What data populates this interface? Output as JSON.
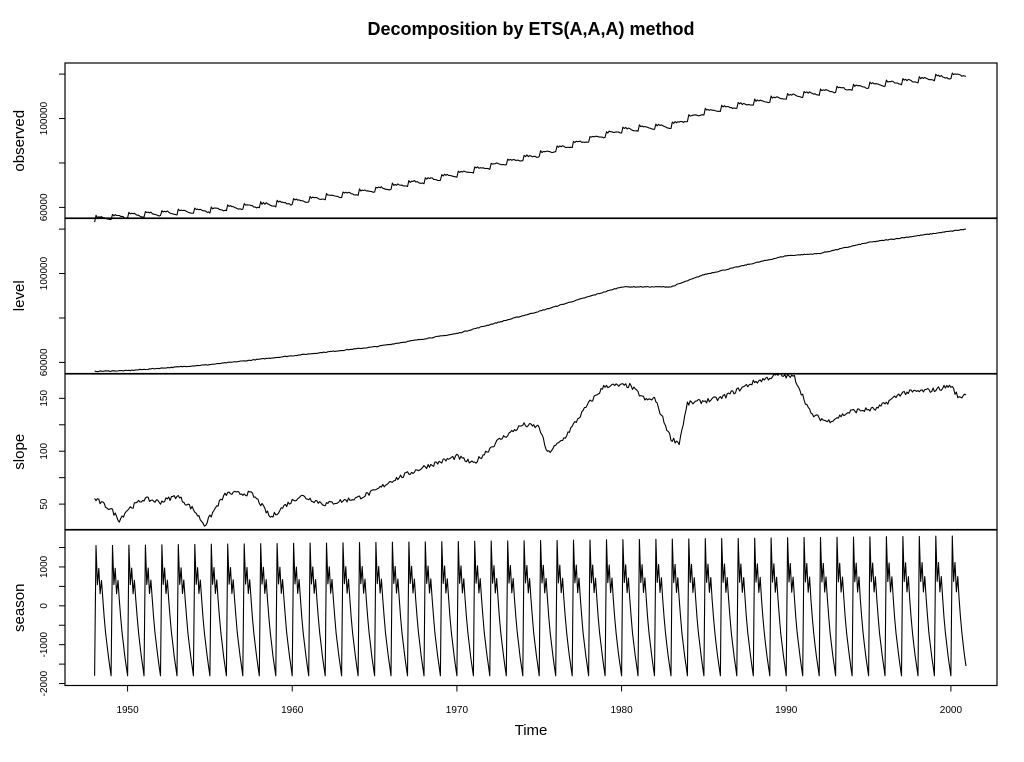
{
  "chart_data": {
    "type": "line",
    "title": "Decomposition by ETS(A,A,A) method",
    "xlabel": "Time",
    "xlim": [
      1946.2,
      2002.8
    ],
    "x_ticks": [
      1950,
      1960,
      1970,
      1980,
      1990,
      2000
    ],
    "x_start": 1948.0,
    "x_end": 2000.917,
    "x_frequency": 12,
    "panels": [
      {
        "name": "observed",
        "ylabel": "observed",
        "ylim": [
          55000,
          125000
        ],
        "y_ticks": [
          60000,
          100000
        ],
        "knots": [
          [
            1948.0,
            55000
          ],
          [
            1950.0,
            56500
          ],
          [
            1955.0,
            59000
          ],
          [
            1960.0,
            62500
          ],
          [
            1965.0,
            68000
          ],
          [
            1970.0,
            75000
          ],
          [
            1975.0,
            84000
          ],
          [
            1980.0,
            95000
          ],
          [
            1983.0,
            97000
          ],
          [
            1985.0,
            103000
          ],
          [
            1990.0,
            110000
          ],
          [
            1995.0,
            115000
          ],
          [
            2000.92,
            120000
          ]
        ],
        "seasonal_amplitude": 1500
      },
      {
        "name": "level",
        "ylabel": "level",
        "ylim": [
          55000,
          125000
        ],
        "y_ticks": [
          60000,
          100000
        ],
        "knots": [
          [
            1948.0,
            56000
          ],
          [
            1950.0,
            56300
          ],
          [
            1955.0,
            59000
          ],
          [
            1960.0,
            63000
          ],
          [
            1965.0,
            67000
          ],
          [
            1970.0,
            73000
          ],
          [
            1975.0,
            83000
          ],
          [
            1980.0,
            94000
          ],
          [
            1983.0,
            94000
          ],
          [
            1985.0,
            99500
          ],
          [
            1990.0,
            108000
          ],
          [
            1992.0,
            109000
          ],
          [
            1995.0,
            114000
          ],
          [
            2000.92,
            120000
          ]
        ]
      },
      {
        "name": "slope",
        "ylabel": "slope",
        "ylim": [
          26,
          173
        ],
        "y_ticks": [
          50,
          100,
          150
        ],
        "knots": [
          [
            1948.0,
            55
          ],
          [
            1949.0,
            45
          ],
          [
            1949.5,
            35
          ],
          [
            1950.0,
            45
          ],
          [
            1951.0,
            55
          ],
          [
            1952.0,
            52
          ],
          [
            1953.0,
            58
          ],
          [
            1954.0,
            45
          ],
          [
            1954.7,
            30
          ],
          [
            1955.5,
            50
          ],
          [
            1956.0,
            60
          ],
          [
            1957.5,
            60
          ],
          [
            1958.0,
            52
          ],
          [
            1958.7,
            37
          ],
          [
            1959.5,
            48
          ],
          [
            1960.5,
            58
          ],
          [
            1962.0,
            50
          ],
          [
            1964.0,
            56
          ],
          [
            1965.0,
            62
          ],
          [
            1966.0,
            72
          ],
          [
            1968.0,
            85
          ],
          [
            1970.0,
            95
          ],
          [
            1971.0,
            88
          ],
          [
            1972.5,
            110
          ],
          [
            1974.0,
            125
          ],
          [
            1975.0,
            123
          ],
          [
            1975.5,
            98
          ],
          [
            1976.5,
            112
          ],
          [
            1978.0,
            145
          ],
          [
            1979.0,
            162
          ],
          [
            1980.5,
            162
          ],
          [
            1981.5,
            148
          ],
          [
            1982.0,
            150
          ],
          [
            1983.0,
            112
          ],
          [
            1983.5,
            108
          ],
          [
            1984.0,
            145
          ],
          [
            1986.0,
            150
          ],
          [
            1988.0,
            165
          ],
          [
            1989.5,
            172
          ],
          [
            1990.5,
            170
          ],
          [
            1991.5,
            135
          ],
          [
            1992.5,
            128
          ],
          [
            1994.0,
            138
          ],
          [
            1995.5,
            140
          ],
          [
            1997.0,
            155
          ],
          [
            1999.0,
            158
          ],
          [
            2000.0,
            162
          ],
          [
            2000.5,
            150
          ],
          [
            2000.92,
            155
          ]
        ]
      },
      {
        "name": "season",
        "ylabel": "season",
        "ylim": [
          -2050,
          1950
        ],
        "y_ticks": [
          -2000,
          -1000,
          0,
          1000
        ],
        "peak_start": 1550,
        "peak_end": 1800,
        "trough": -1800
      }
    ]
  }
}
